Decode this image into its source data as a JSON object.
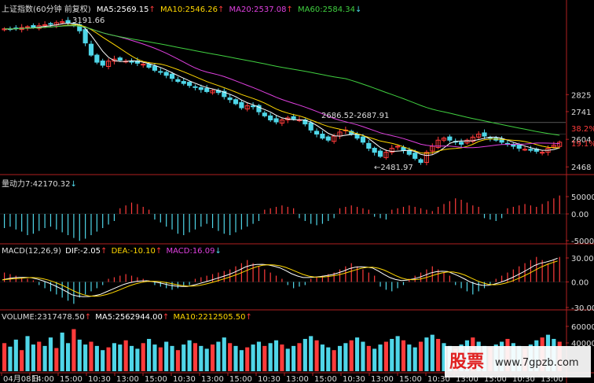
{
  "header": {
    "title": "上证指数(60分钟 前复权)",
    "ma5": "MA5:2569.15",
    "ma10": "MA10:2546.26",
    "ma20": "MA20:2537.08",
    "ma60": "MA60:2584.34"
  },
  "panels": {
    "momentum": {
      "label": "量动力7",
      "value": ":42170.32"
    },
    "macd": {
      "label": "MACD(12,26,9)",
      "dif": "DIF:-2.05",
      "dea": "DEA:-10.10",
      "macd": "MACD:16.09"
    },
    "volume": {
      "label": "VOLUME:2317478.50",
      "ma5": "MA5:2562944.00",
      "ma10": "MA10:2212505.50"
    }
  },
  "watermark": {
    "logo": "股票",
    "site": "www.7gpzb.com"
  },
  "colors": {
    "up": "#ff3b3b",
    "down": "#4fd6e8",
    "ma5": "#ffffff",
    "ma10": "#ffd700",
    "ma20": "#e040e0",
    "ma60": "#40d040",
    "axis": "#b02020"
  },
  "chart_data": [
    {
      "type": "candlestick",
      "title": "上证指数(60分钟 前复权)",
      "y_ticks": [
        "2825",
        "2741",
        "2604",
        "2468"
      ],
      "y_pct_ticks": [
        "38.2%",
        "19.1%"
      ],
      "annotations": [
        "3191.66",
        "2686.52-2687.91",
        "2481.97"
      ],
      "x_ticks": [
        "04月08日",
        "14:00",
        "15:00",
        "10:30",
        "13:00",
        "15:00",
        "10:30",
        "13:00",
        "15:00",
        "10:30",
        "13:00",
        "15:00",
        "10:30",
        "13:00",
        "15:00",
        "10:30",
        "13:00",
        "15:00",
        "10:30",
        "13:00",
        "15:00"
      ],
      "close": [
        3150,
        3148,
        3152,
        3156,
        3160,
        3158,
        3165,
        3170,
        3175,
        3180,
        3185,
        3178,
        3170,
        3140,
        3080,
        3020,
        2985,
        2970,
        2990,
        3000,
        2995,
        2990,
        2985,
        2980,
        2975,
        2960,
        2945,
        2935,
        2920,
        2905,
        2890,
        2880,
        2870,
        2860,
        2850,
        2840,
        2845,
        2835,
        2815,
        2800,
        2780,
        2760,
        2770,
        2765,
        2740,
        2720,
        2700,
        2690,
        2700,
        2710,
        2705,
        2700,
        2680,
        2650,
        2630,
        2610,
        2600,
        2620,
        2640,
        2650,
        2630,
        2610,
        2590,
        2560,
        2540,
        2520,
        2540,
        2560,
        2570,
        2550,
        2530,
        2510,
        2490,
        2540,
        2570,
        2600,
        2610,
        2600,
        2590,
        2580,
        2600,
        2615,
        2630,
        2620,
        2610,
        2600,
        2590,
        2580,
        2570,
        2560,
        2555,
        2550,
        2545,
        2540,
        2560,
        2575,
        2590
      ],
      "ma": [
        {
          "name": "MA5",
          "color": "#ffffff"
        },
        {
          "name": "MA10",
          "color": "#ffd700"
        },
        {
          "name": "MA20",
          "color": "#e040e0"
        },
        {
          "name": "MA60",
          "color": "#40d040"
        }
      ]
    },
    {
      "type": "bar",
      "title": "量动力7",
      "y_ticks": [
        "50000",
        "0.00",
        "-50000"
      ],
      "values": [
        -20,
        -18,
        -22,
        -25,
        -30,
        -28,
        -24,
        -20,
        -18,
        -22,
        -26,
        -30,
        -34,
        -38,
        -35,
        -30,
        -25,
        -20,
        -15,
        -10,
        8,
        12,
        16,
        14,
        10,
        6,
        -8,
        -12,
        -18,
        -22,
        -28,
        -30,
        -26,
        -22,
        -18,
        -14,
        -20,
        -24,
        -28,
        -30,
        -26,
        -22,
        -18,
        -14,
        -10,
        6,
        8,
        10,
        12,
        10,
        8,
        -6,
        -10,
        -14,
        -16,
        -14,
        -10,
        -6,
        8,
        10,
        12,
        10,
        8,
        6,
        -4,
        -6,
        -8,
        6,
        8,
        10,
        12,
        10,
        8,
        6,
        4,
        10,
        14,
        18,
        22,
        20,
        16,
        12,
        10,
        -6,
        -8,
        -10,
        -6,
        8,
        10,
        12,
        14,
        12,
        10,
        14,
        18,
        22,
        26
      ]
    },
    {
      "type": "bar",
      "title": "MACD(12,26,9)",
      "y_ticks": [
        "30.00",
        "0.00",
        "-30.00"
      ],
      "values": [
        6,
        5,
        4,
        3,
        2,
        1,
        -2,
        -4,
        -6,
        -8,
        -10,
        -12,
        -14,
        -10,
        -8,
        -6,
        -4,
        -2,
        2,
        3,
        4,
        5,
        4,
        3,
        2,
        1,
        -2,
        -3,
        -4,
        -5,
        -4,
        -3,
        -2,
        2,
        3,
        4,
        5,
        6,
        7,
        8,
        10,
        12,
        14,
        12,
        10,
        8,
        6,
        4,
        2,
        -2,
        -4,
        -3,
        -2,
        2,
        3,
        4,
        5,
        6,
        8,
        10,
        12,
        10,
        8,
        6,
        4,
        -3,
        -5,
        -6,
        -4,
        -2,
        2,
        4,
        6,
        8,
        10,
        8,
        6,
        4,
        -2,
        -4,
        -6,
        -8,
        -6,
        -4,
        -2,
        2,
        4,
        6,
        8,
        10,
        12,
        14,
        16,
        14,
        12,
        14,
        16
      ]
    },
    {
      "type": "bar",
      "title": "VOLUME",
      "y_ticks": [
        "60000",
        "40000"
      ],
      "values": [
        40,
        35,
        45,
        30,
        50,
        38,
        42,
        36,
        48,
        33,
        55,
        40,
        60,
        45,
        38,
        42,
        36,
        30,
        34,
        40,
        38,
        44,
        36,
        32,
        40,
        46,
        38,
        34,
        42,
        36,
        30,
        38,
        44,
        40,
        36,
        32,
        38,
        42,
        48,
        40,
        36,
        30,
        34,
        38,
        42,
        36,
        40,
        44,
        38,
        32,
        36,
        40,
        46,
        50,
        44,
        38,
        34,
        30,
        36,
        40,
        44,
        48,
        42,
        36,
        32,
        38,
        42,
        46,
        50,
        44,
        38,
        34,
        42,
        48,
        52,
        46,
        40,
        36,
        32,
        38,
        44,
        48,
        42,
        36,
        34,
        38,
        42,
        46,
        40,
        36,
        32,
        38,
        44,
        48,
        52,
        46,
        42
      ]
    }
  ]
}
